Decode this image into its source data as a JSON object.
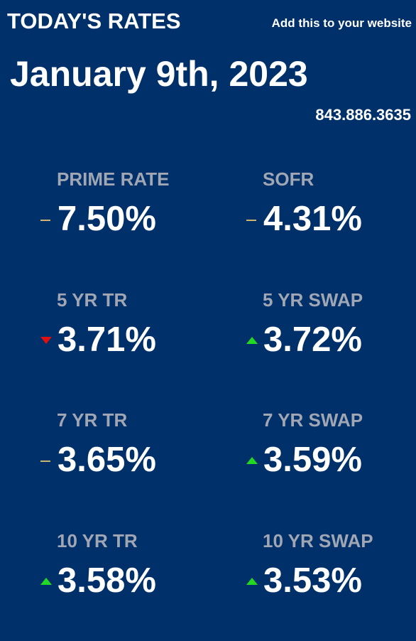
{
  "header": {
    "title": "TODAY'S RATES",
    "add_link": "Add this to your website"
  },
  "date": "January 9th, 2023",
  "phone": "843.886.3635",
  "colors": {
    "background": "#00306a",
    "label": "#a0a6b3",
    "up": "#22d822",
    "down": "#e01010",
    "flat": "#c9b56c"
  },
  "rates": [
    {
      "label": "PRIME RATE",
      "value": "7.50%",
      "trend": "flat"
    },
    {
      "label": "SOFR",
      "value": "4.31%",
      "trend": "flat"
    },
    {
      "label": "5 YR TR",
      "value": "3.71%",
      "trend": "down"
    },
    {
      "label": "5 YR SWAP",
      "value": "3.72%",
      "trend": "up"
    },
    {
      "label": "7 YR TR",
      "value": "3.65%",
      "trend": "flat"
    },
    {
      "label": "7 YR SWAP",
      "value": "3.59%",
      "trend": "up"
    },
    {
      "label": "10 YR TR",
      "value": "3.58%",
      "trend": "up"
    },
    {
      "label": "10 YR SWAP",
      "value": "3.53%",
      "trend": "up"
    }
  ]
}
